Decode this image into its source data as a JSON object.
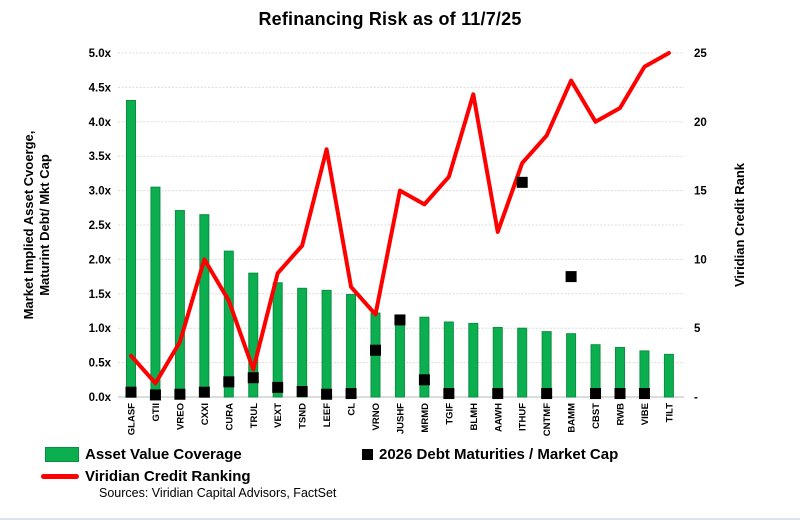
{
  "title": "Refinancing Risk as of 11/7/25",
  "source_note": "Sources: Viridian Capital Advisors, FactSet",
  "colors": {
    "bar_fill": "#0caf50",
    "bar_border": "#0a8f42",
    "line_red": "#fe0000",
    "marker_black": "#000000",
    "gridline": "#dcdcdc",
    "baseline": "#c6c6c6",
    "text": "#000000"
  },
  "left_axis": {
    "label_line1": "Market Implied Asset Cvoerge,",
    "label_line2": "Maturint Debt/ Mkt Cap",
    "ticks": [
      "5.0x",
      "4.5x",
      "4.0x",
      "3.5x",
      "3.0x",
      "2.5x",
      "2.0x",
      "1.5x",
      "1.0x",
      "0.5x",
      "0.0x"
    ],
    "min": 0,
    "max": 5
  },
  "right_axis": {
    "label": "Viridian Credit Rank",
    "ticks": [
      "25",
      "20",
      "15",
      "10",
      "5",
      "-"
    ],
    "tick_values": [
      25,
      20,
      15,
      10,
      5,
      0
    ],
    "min": 0,
    "max": 25
  },
  "legend": {
    "asset_value_coverage": "Asset Value Coverage",
    "debt_maturities": "2026 Debt Maturities / Market Cap",
    "credit_ranking": "Viridian Credit Ranking"
  },
  "chart_data": {
    "type": "combo-bar-scatter-line",
    "title": "Refinancing Risk as of 11/7/25",
    "categories": [
      "GLASF",
      "GTII",
      "VREO",
      "CXXI",
      "CURA",
      "TRUL",
      "VEXT",
      "TSND",
      "LEEF",
      "CL",
      "VRNO",
      "JUSHF",
      "MRMD",
      "TGIF",
      "BLMH",
      "AAWH",
      "ITHUF",
      "CNTMF",
      "BAMM",
      "CBST",
      "RWB",
      "VIBE",
      "TILT"
    ],
    "series": [
      {
        "name": "Asset Value Coverage",
        "type": "bar",
        "axis": "left",
        "values": [
          4.31,
          3.05,
          2.71,
          2.65,
          2.12,
          1.8,
          1.66,
          1.58,
          1.55,
          1.49,
          1.22,
          1.13,
          1.16,
          1.09,
          1.07,
          1.01,
          1.0,
          0.95,
          0.92,
          0.76,
          0.72,
          0.67,
          0.62
        ]
      },
      {
        "name": "2026 Debt Maturities / Market Cap",
        "type": "scatter",
        "axis": "left",
        "values": [
          0.07,
          0.03,
          0.04,
          0.07,
          0.22,
          0.28,
          0.14,
          0.08,
          0.04,
          0.05,
          0.68,
          1.12,
          0.25,
          0.05,
          null,
          0.05,
          3.12,
          0.05,
          1.75,
          0.05,
          0.05,
          0.05,
          null
        ]
      },
      {
        "name": "Viridian Credit Ranking",
        "type": "line",
        "axis": "right",
        "values": [
          3,
          1,
          4,
          10,
          7,
          2,
          9,
          11,
          18,
          8,
          6,
          15,
          14,
          16,
          22,
          12,
          17,
          19,
          23,
          20,
          21,
          24,
          25
        ]
      }
    ],
    "left_ylim": [
      0,
      5
    ],
    "right_ylim": [
      0,
      25
    ],
    "grid": true,
    "legend_position": "bottom"
  }
}
